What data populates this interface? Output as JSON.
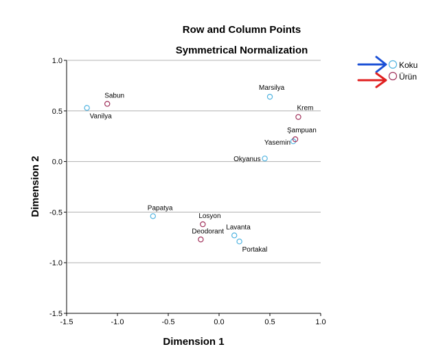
{
  "chart_data": {
    "type": "scatter",
    "title": "Row and Column Points",
    "subtitle": "Symmetrical Normalization",
    "xlabel": "Dimension 1",
    "ylabel": "Dimension 2",
    "xlim": [
      -1.5,
      1.0
    ],
    "ylim": [
      -1.5,
      1.0
    ],
    "x_ticks": [
      "-1.5",
      "-1.0",
      "-0.5",
      "0.0",
      "0.5",
      "1.0"
    ],
    "y_ticks": [
      "1.0",
      "0.5",
      "0.0",
      "-0.5",
      "-1.0",
      "-1.5"
    ],
    "grid": "horizontal",
    "legend_position": "right",
    "series": [
      {
        "name": "Koku",
        "color": "#4fb3e0",
        "points": [
          {
            "label": "Vanilya",
            "x": -1.3,
            "y": 0.53
          },
          {
            "label": "Marsilya",
            "x": 0.5,
            "y": 0.64
          },
          {
            "label": "Yasemin",
            "x": 0.73,
            "y": 0.2
          },
          {
            "label": "Okyanus",
            "x": 0.45,
            "y": 0.03
          },
          {
            "label": "Papatya",
            "x": -0.65,
            "y": -0.54
          },
          {
            "label": "Lavanta",
            "x": 0.15,
            "y": -0.73
          },
          {
            "label": "Portakal",
            "x": 0.2,
            "y": -0.79
          }
        ]
      },
      {
        "name": "Ürün",
        "color": "#a0305a",
        "points": [
          {
            "label": "Sabun",
            "x": -1.1,
            "y": 0.57
          },
          {
            "label": "Krem",
            "x": 0.78,
            "y": 0.44
          },
          {
            "label": "Şampuan",
            "x": 0.75,
            "y": 0.22
          },
          {
            "label": "Losyon",
            "x": -0.16,
            "y": -0.62
          },
          {
            "label": "Deodorant",
            "x": -0.18,
            "y": -0.77
          }
        ]
      }
    ]
  }
}
